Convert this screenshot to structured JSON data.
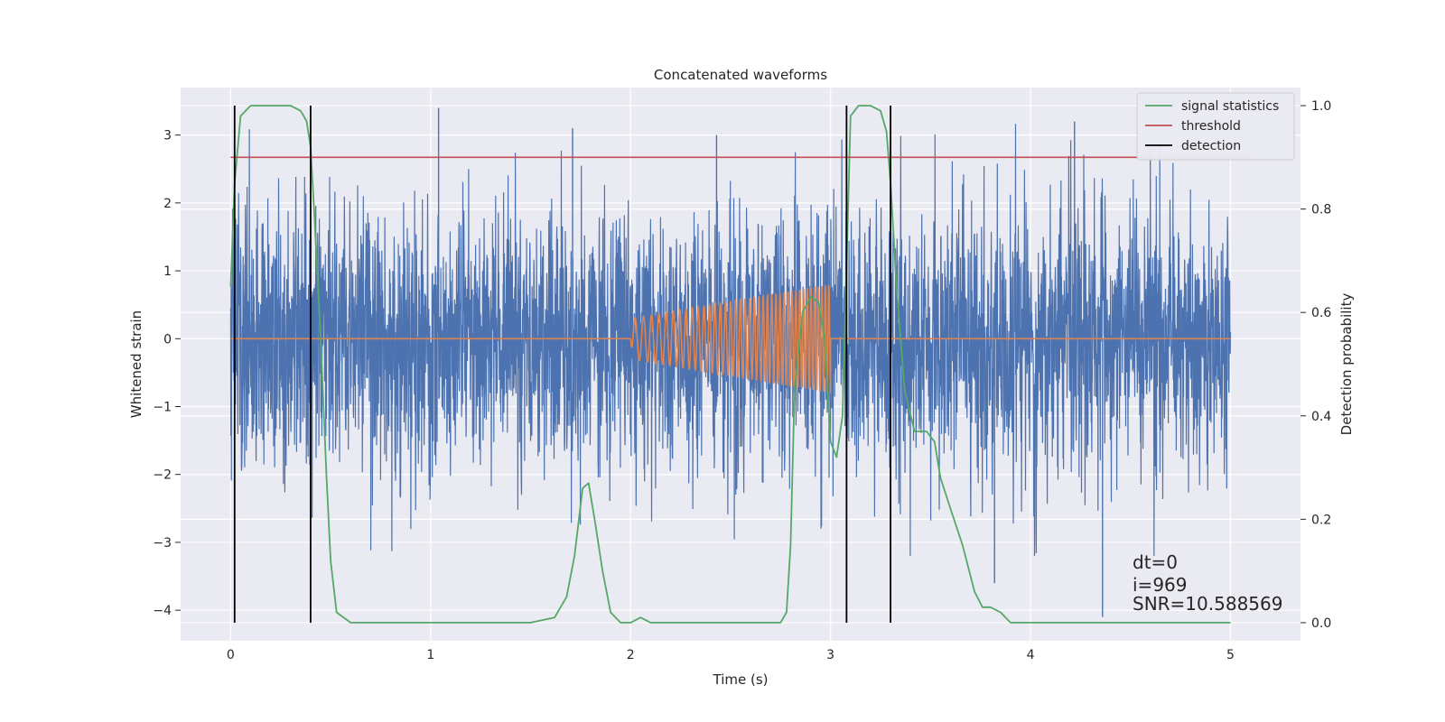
{
  "chart_data": {
    "type": "line",
    "title": "Concatenated waveforms",
    "xlabel": "Time (s)",
    "ylabel_left": "Whitened strain",
    "ylabel_right": "Detection probability",
    "xlim": [
      -0.25,
      5.35
    ],
    "ylim_left": [
      -4.45,
      3.7
    ],
    "ylim_right": [
      -0.035,
      1.035
    ],
    "xticks": [
      0,
      1,
      2,
      3,
      4,
      5
    ],
    "yticks_left": [
      3,
      2,
      1,
      0,
      -1,
      -2,
      -3,
      -4
    ],
    "yticks_right": [
      1.0,
      0.8,
      0.6,
      0.4,
      0.2,
      0.0
    ],
    "grid": true,
    "legend_position": "top-right",
    "colors": {
      "strain": "#4c72b0",
      "template": "#dd8452",
      "signal_statistics": "#55a868",
      "threshold": "#c44e52",
      "detection": "#000000",
      "background": "#eaeaf2",
      "grid": "#ffffff"
    },
    "series": [
      {
        "name": "signal statistics",
        "axis": "right",
        "x": [
          0.0,
          0.02,
          0.05,
          0.1,
          0.2,
          0.3,
          0.35,
          0.38,
          0.4,
          0.42,
          0.45,
          0.48,
          0.5,
          0.53,
          0.6,
          1.0,
          1.5,
          1.62,
          1.68,
          1.72,
          1.76,
          1.79,
          1.82,
          1.86,
          1.9,
          1.95,
          2.0,
          2.05,
          2.1,
          2.5,
          2.75,
          2.78,
          2.8,
          2.82,
          2.86,
          2.9,
          2.94,
          2.97,
          3.0,
          3.03,
          3.06,
          3.1,
          3.14,
          3.2,
          3.25,
          3.28,
          3.3,
          3.33,
          3.37,
          3.42,
          3.48,
          3.52,
          3.55,
          3.6,
          3.66,
          3.72,
          3.76,
          3.8,
          3.85,
          3.9,
          4.0,
          4.5,
          5.0
        ],
        "values": [
          0.65,
          0.85,
          0.98,
          1.0,
          1.0,
          1.0,
          0.99,
          0.97,
          0.92,
          0.78,
          0.55,
          0.28,
          0.12,
          0.02,
          0.0,
          0.0,
          0.0,
          0.01,
          0.05,
          0.13,
          0.26,
          0.27,
          0.2,
          0.1,
          0.02,
          0.0,
          0.0,
          0.01,
          0.0,
          0.0,
          0.0,
          0.02,
          0.15,
          0.45,
          0.6,
          0.63,
          0.62,
          0.55,
          0.35,
          0.32,
          0.4,
          0.98,
          1.0,
          1.0,
          0.99,
          0.95,
          0.85,
          0.65,
          0.45,
          0.37,
          0.37,
          0.35,
          0.28,
          0.22,
          0.15,
          0.06,
          0.03,
          0.03,
          0.02,
          0.0,
          0.0,
          0.0,
          0.0
        ]
      },
      {
        "name": "threshold",
        "axis": "right",
        "x": [
          0.0,
          5.1
        ],
        "values": [
          0.9,
          0.9
        ]
      },
      {
        "name": "detection",
        "axis": "right",
        "vlines_x": [
          0.02,
          0.4,
          3.08,
          3.3
        ],
        "ymin": 0.0,
        "ymax": 1.0
      },
      {
        "name": "",
        "axis": "left",
        "kind": "whitened strain noise",
        "x_range": [
          0.0,
          5.0
        ],
        "approx_envelope": [
          -2.6,
          2.6
        ],
        "max_spike": 3.4,
        "min_spike": -4.1
      },
      {
        "name": "",
        "axis": "left",
        "kind": "chirp template",
        "x_range": [
          0.0,
          5.0
        ],
        "chirp_start": 2.0,
        "chirp_end": 3.0,
        "amp_start": 0.3,
        "amp_end": 0.8,
        "values_outside_chirp": 0.0
      }
    ],
    "legend": [
      "signal statistics",
      "threshold",
      "detection"
    ],
    "annotations": [
      "dt=0",
      "i=969",
      "SNR=10.588569"
    ]
  }
}
